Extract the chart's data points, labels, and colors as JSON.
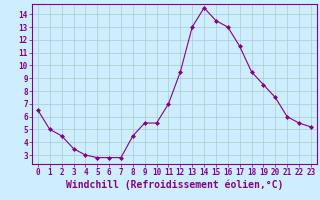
{
  "x": [
    0,
    1,
    2,
    3,
    4,
    5,
    6,
    7,
    8,
    9,
    10,
    11,
    12,
    13,
    14,
    15,
    16,
    17,
    18,
    19,
    20,
    21,
    22,
    23
  ],
  "y": [
    6.5,
    5.0,
    4.5,
    3.5,
    3.0,
    2.8,
    2.8,
    2.8,
    4.5,
    5.5,
    5.5,
    7.0,
    9.5,
    13.0,
    14.5,
    13.5,
    13.0,
    11.5,
    9.5,
    8.5,
    7.5,
    6.0,
    5.5,
    5.2
  ],
  "line_color": "#880088",
  "marker": "D",
  "marker_size": 2.0,
  "bg_color": "#cceeff",
  "grid_color": "#aacccc",
  "xlabel": "Windchill (Refroidissement éolien,°C)",
  "xlabel_color": "#880088",
  "xlabel_fontsize": 7,
  "xlim": [
    -0.5,
    23.5
  ],
  "ylim": [
    2.3,
    14.8
  ],
  "yticks": [
    3,
    4,
    5,
    6,
    7,
    8,
    9,
    10,
    11,
    12,
    13,
    14
  ],
  "xticks": [
    0,
    1,
    2,
    3,
    4,
    5,
    6,
    7,
    8,
    9,
    10,
    11,
    12,
    13,
    14,
    15,
    16,
    17,
    18,
    19,
    20,
    21,
    22,
    23
  ],
  "tick_fontsize": 5.5,
  "tick_color": "#880088",
  "spine_color": "#880088",
  "linewidth": 0.8
}
